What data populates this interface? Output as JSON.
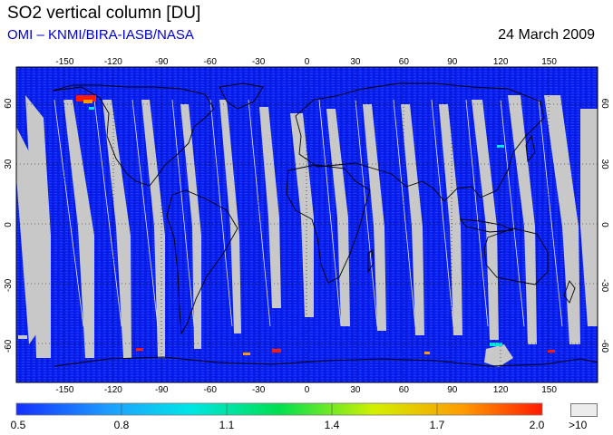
{
  "header": {
    "title": "SO2 vertical column [DU]",
    "credit": "OMI  –  KNMI/BIRA-IASB/NASA",
    "date": "24 March 2009"
  },
  "map": {
    "projection": "equirectangular",
    "lon_ticks": [
      "-150",
      "-120",
      "-90",
      "-60",
      "-30",
      "0",
      "30",
      "60",
      "90",
      "120",
      "150"
    ],
    "lat_ticks": [
      "60",
      "30",
      "0",
      "-30",
      "-60"
    ],
    "colors": {
      "background_field": "#0a1ef0",
      "no_data": "#c8c8c8",
      "coast": "#000000"
    }
  },
  "colorbar": {
    "labels": [
      "0.5",
      "0.8",
      "1.1",
      "1.4",
      "1.7",
      "2.0"
    ],
    "overflow_label": ">10",
    "stops": [
      "#1430ff",
      "#1ea0ff",
      "#00e6e6",
      "#00e050",
      "#d2f000",
      "#ff9a00",
      "#ff1a00"
    ]
  }
}
